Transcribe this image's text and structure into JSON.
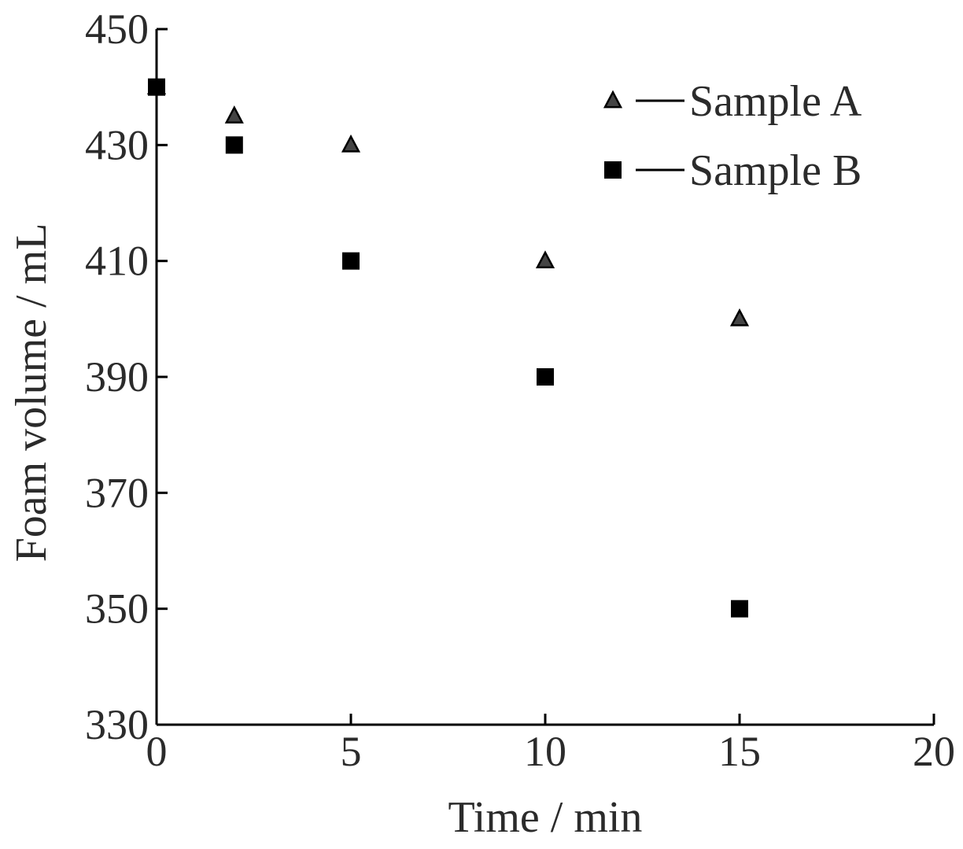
{
  "chart_data": {
    "type": "scatter",
    "title": "",
    "xlabel": "Time / min",
    "ylabel": "Foam volume / mL",
    "xlim": [
      0,
      20
    ],
    "ylim": [
      330,
      450
    ],
    "xticks": [
      0,
      5,
      10,
      15,
      20
    ],
    "yticks": [
      330,
      350,
      370,
      390,
      410,
      430,
      450
    ],
    "grid": false,
    "legend_position": "top-right",
    "series": [
      {
        "name": "Sample A",
        "marker": "triangle",
        "color": "#000000",
        "x": [
          0,
          2,
          5,
          10,
          15
        ],
        "y": [
          440,
          435,
          430,
          410,
          400
        ]
      },
      {
        "name": "Sample B",
        "marker": "square",
        "color": "#000000",
        "x": [
          0,
          2,
          5,
          10,
          15
        ],
        "y": [
          440,
          430,
          410,
          390,
          350
        ]
      }
    ]
  }
}
